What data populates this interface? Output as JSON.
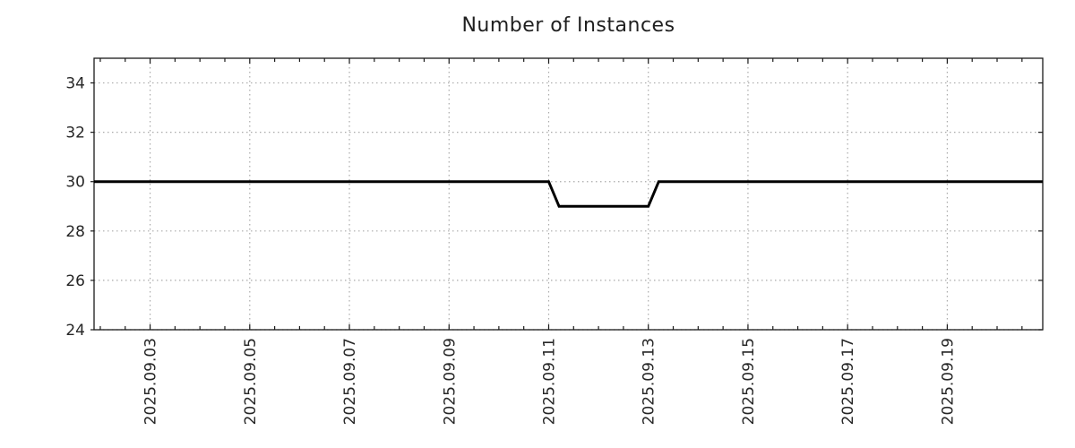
{
  "page": {
    "background_color": "#ffffff"
  },
  "chart_data": {
    "type": "line",
    "title": "Number of Instances",
    "xlabel": "",
    "ylabel": "",
    "legend": "none",
    "grid": true,
    "ylim": [
      24,
      35
    ],
    "y_ticks": [
      24,
      26,
      28,
      30,
      32,
      34
    ],
    "xlim_dates": [
      "2025-09-01 21:00",
      "2025-09-20 22:00"
    ],
    "x_ticks": [
      {
        "day": 3,
        "label": "2025.09.03"
      },
      {
        "day": 5,
        "label": "2025.09.05"
      },
      {
        "day": 7,
        "label": "2025.09.07"
      },
      {
        "day": 9,
        "label": "2025.09.09"
      },
      {
        "day": 11,
        "label": "2025.09.11"
      },
      {
        "day": 13,
        "label": "2025.09.13"
      },
      {
        "day": 15,
        "label": "2025.09.15"
      },
      {
        "day": 17,
        "label": "2025.09.17"
      },
      {
        "day": 19,
        "label": "2025.09.19"
      }
    ],
    "x_minor_tick_step_days": 0.5,
    "styles": {
      "line_color": "#000000",
      "line_width": 3,
      "grid_color": "#aaaaaa",
      "border_color": "#1a1a1a",
      "tick_color": "#1a1a1a",
      "tick_label_color": "#262626",
      "title_color": "#1f1f1f"
    },
    "series": [
      {
        "name": "instances",
        "points": [
          {
            "date": "2025-09-01 21:00",
            "value": 30
          },
          {
            "date": "2025-09-11 00:00",
            "value": 30
          },
          {
            "date": "2025-09-11 05:00",
            "value": 29
          },
          {
            "date": "2025-09-13 00:00",
            "value": 29
          },
          {
            "date": "2025-09-13 05:00",
            "value": 30
          },
          {
            "date": "2025-09-20 22:00",
            "value": 30
          }
        ]
      }
    ]
  }
}
